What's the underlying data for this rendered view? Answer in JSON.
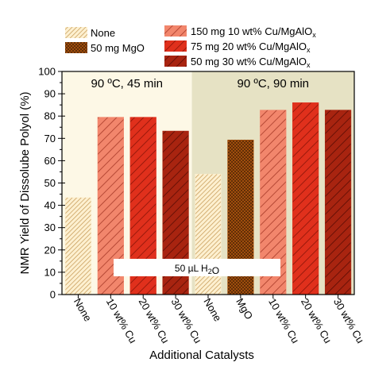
{
  "chart_data": {
    "type": "bar",
    "ylabel": "NMR Yield of Dissolube Polyol (%)",
    "xlabel": "Additional Catalysts",
    "ylim": [
      0,
      100
    ],
    "yticks": [
      0,
      10,
      20,
      30,
      40,
      50,
      60,
      70,
      80,
      90,
      100
    ],
    "grid": false,
    "legend_position": "top",
    "legend": {
      "col1": [
        {
          "key": "none",
          "label": "None"
        },
        {
          "key": "mgo",
          "label": "50 mg MgO"
        }
      ],
      "col2": [
        {
          "key": "cu10",
          "parts": [
            {
              "t": "150 mg 10 wt% Cu/MgAlO"
            },
            {
              "t": "x",
              "sub": true
            }
          ]
        },
        {
          "key": "cu20",
          "parts": [
            {
              "t": "75 mg 20 wt% Cu/MgAlO"
            },
            {
              "t": "x",
              "sub": true
            }
          ]
        },
        {
          "key": "cu30",
          "parts": [
            {
              "t": "50 mg 30 wt% Cu/MgAlO"
            },
            {
              "t": "x",
              "sub": true
            }
          ]
        }
      ]
    },
    "styles": {
      "none": {
        "fill": "#fdf0d0",
        "hatch": "#c09048",
        "pattern": "diag-dense"
      },
      "mgo": {
        "fill": "#b85a10",
        "hatch": "#5a2a05",
        "pattern": "cross"
      },
      "cu10": {
        "fill": "#f2866c",
        "hatch": "#a83a28",
        "pattern": "diag-wide"
      },
      "cu20": {
        "fill": "#e0301c",
        "hatch": "#8a1408",
        "pattern": "diag-wide"
      },
      "cu30": {
        "fill": "#a82410",
        "hatch": "#5a0c04",
        "pattern": "diag-wide"
      }
    },
    "panels": [
      {
        "label": "90 ºC, 45 min",
        "background": "#fdf8e6",
        "span": [
          0,
          3
        ]
      },
      {
        "label": "90 ºC, 90 min",
        "background": "#e6e2c4",
        "span": [
          4,
          8
        ]
      }
    ],
    "categories": [
      "None",
      "10 wt% Cu",
      "20 wt% Cu",
      "30 wt% Cu",
      "None",
      "MgO",
      "10 wt% Cu",
      "20 wt% Cu",
      "30 wt% Cu"
    ],
    "bars": [
      {
        "category": "None",
        "style": "none",
        "value": 43.5
      },
      {
        "category": "10 wt% Cu",
        "style": "cu10",
        "value": 79.5
      },
      {
        "category": "20 wt% Cu",
        "style": "cu20",
        "value": 79.5
      },
      {
        "category": "30 wt% Cu",
        "style": "cu30",
        "value": 73.3
      },
      {
        "category": "None",
        "style": "none",
        "value": 54.0
      },
      {
        "category": "MgO",
        "style": "mgo",
        "value": 69.3
      },
      {
        "category": "10 wt% Cu",
        "style": "cu10",
        "value": 82.7
      },
      {
        "category": "20 wt% Cu",
        "style": "cu20",
        "value": 86.0
      },
      {
        "category": "30 wt% Cu",
        "style": "cu30",
        "value": 82.7
      }
    ],
    "annotation": {
      "parts": [
        {
          "t": "50 "
        },
        {
          "t": "µL H"
        },
        {
          "t": "2",
          "sub": true
        },
        {
          "t": "O"
        }
      ]
    }
  }
}
